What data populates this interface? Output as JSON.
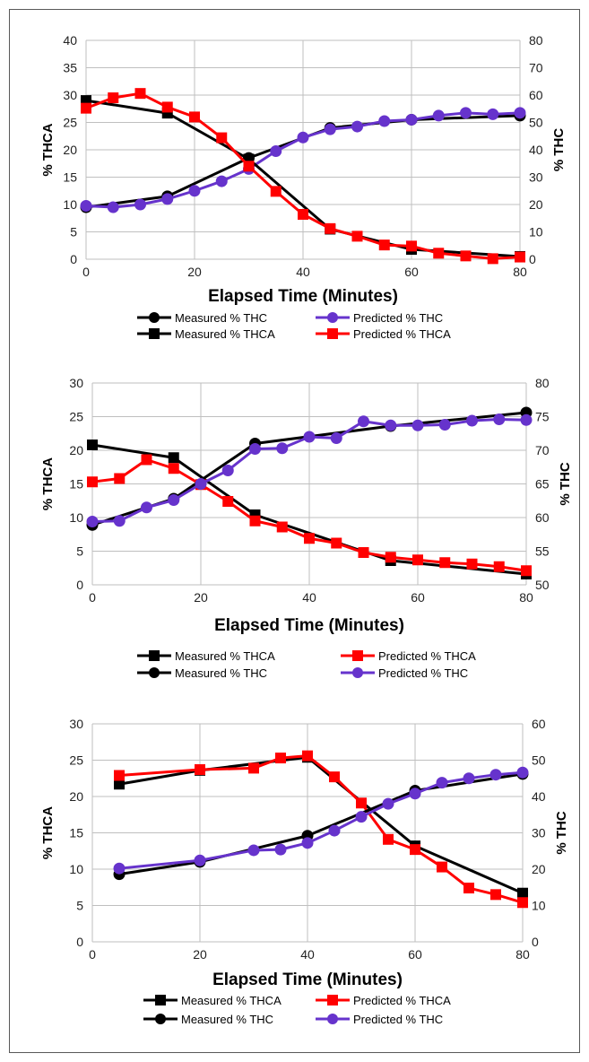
{
  "chart_data": [
    {
      "type": "line",
      "xlabel": "Elapsed Time (Minutes)",
      "ylabel": "% THCA",
      "y2label": "% THC",
      "xlim": [
        0,
        80
      ],
      "xticks": [
        0,
        20,
        40,
        60,
        80
      ],
      "ylim": [
        0,
        40
      ],
      "yticks": [
        0,
        5,
        10,
        15,
        20,
        25,
        30,
        35,
        40
      ],
      "y2lim": [
        0,
        80
      ],
      "y2ticks": [
        0,
        10,
        20,
        30,
        40,
        50,
        60,
        70,
        80
      ],
      "grid": true,
      "legend_position": "bottom",
      "legend_rows": [
        [
          "Measured % THC",
          "Predicted % THC"
        ],
        [
          "Measured % THCA",
          "Predicted % THCA"
        ]
      ],
      "series": [
        {
          "name": "Measured % THC",
          "axis": "right",
          "color": "#000000",
          "marker": "circle",
          "x": [
            0,
            15,
            30,
            45,
            60,
            80
          ],
          "y": [
            19,
            23,
            37,
            48,
            51,
            52.5
          ]
        },
        {
          "name": "Predicted % THC",
          "axis": "right",
          "color": "#6633CC",
          "marker": "circle",
          "x": [
            0,
            5,
            10,
            15,
            20,
            25,
            30,
            35,
            40,
            45,
            50,
            55,
            60,
            65,
            70,
            75,
            80
          ],
          "y": [
            19.5,
            19,
            20,
            22,
            25,
            28.5,
            33,
            39.5,
            44.5,
            47.5,
            48.5,
            50.5,
            51,
            52.5,
            53.5,
            53,
            53.5
          ]
        },
        {
          "name": "Measured % THCA",
          "axis": "left",
          "color": "#000000",
          "marker": "square",
          "x": [
            0,
            15,
            30,
            45,
            60,
            80
          ],
          "y": [
            29,
            26.7,
            18.3,
            5.5,
            1.8,
            0.5
          ]
        },
        {
          "name": "Predicted % THCA",
          "axis": "left",
          "color": "#FF0000",
          "marker": "square",
          "x": [
            0,
            5,
            10,
            15,
            20,
            25,
            30,
            35,
            40,
            45,
            50,
            55,
            60,
            65,
            70,
            75,
            80
          ],
          "y": [
            27.6,
            29.5,
            30.3,
            27.8,
            26,
            22.2,
            17,
            12.4,
            8.2,
            5.6,
            4.2,
            2.6,
            2.4,
            1.1,
            0.6,
            0.1,
            0.4
          ]
        }
      ]
    },
    {
      "type": "line",
      "xlabel": "Elapsed Time (Minutes)",
      "ylabel": "% THCA",
      "y2label": "% THC",
      "xlim": [
        0,
        80
      ],
      "xticks": [
        0,
        20,
        40,
        60,
        80
      ],
      "ylim": [
        0,
        30
      ],
      "yticks": [
        0,
        5,
        10,
        15,
        20,
        25,
        30
      ],
      "y2lim": [
        50,
        80
      ],
      "y2ticks": [
        50,
        55,
        60,
        65,
        70,
        75,
        80
      ],
      "grid": true,
      "legend_position": "bottom",
      "legend_rows": [
        [
          "Measured % THCA",
          "Predicted % THCA"
        ],
        [
          "Measured % THC",
          "Predicted % THC"
        ]
      ],
      "series": [
        {
          "name": "Measured % THCA",
          "axis": "left",
          "color": "#000000",
          "marker": "square",
          "x": [
            0,
            15,
            30,
            55,
            80
          ],
          "y": [
            20.8,
            18.9,
            10.4,
            3.6,
            1.6
          ]
        },
        {
          "name": "Predicted % THCA",
          "axis": "left",
          "color": "#FF0000",
          "marker": "square",
          "x": [
            0,
            5,
            10,
            15,
            20,
            25,
            30,
            35,
            40,
            45,
            50,
            55,
            60,
            65,
            70,
            75,
            80
          ],
          "y": [
            15.3,
            15.8,
            18.6,
            17.3,
            14.9,
            12.4,
            9.5,
            8.6,
            6.9,
            6.2,
            4.8,
            4.1,
            3.7,
            3.3,
            3.1,
            2.7,
            2.1
          ]
        },
        {
          "name": "Measured % THC",
          "axis": "right",
          "color": "#000000",
          "marker": "circle",
          "x": [
            0,
            15,
            30,
            55,
            80
          ],
          "y": [
            58.9,
            62.8,
            71,
            73.6,
            75.6
          ]
        },
        {
          "name": "Predicted % THC",
          "axis": "right",
          "color": "#6633CC",
          "marker": "circle",
          "x": [
            0,
            5,
            10,
            15,
            20,
            25,
            30,
            35,
            40,
            45,
            50,
            55,
            60,
            65,
            70,
            75,
            80
          ],
          "y": [
            59.4,
            59.5,
            61.5,
            62.6,
            65,
            67,
            70.2,
            70.3,
            72,
            71.8,
            74.3,
            73.7,
            73.7,
            73.8,
            74.4,
            74.6,
            74.5
          ]
        }
      ]
    },
    {
      "type": "line",
      "xlabel": "Elapsed Time (Minutes)",
      "ylabel": "% THCA",
      "y2label": "% THC",
      "xlim": [
        0,
        80
      ],
      "xticks": [
        0,
        20,
        40,
        60,
        80
      ],
      "ylim": [
        0,
        30
      ],
      "yticks": [
        0,
        5,
        10,
        15,
        20,
        25,
        30
      ],
      "y2lim": [
        0,
        60
      ],
      "y2ticks": [
        0,
        10,
        20,
        30,
        40,
        50,
        60
      ],
      "grid": true,
      "legend_position": "bottom",
      "legend_rows": [
        [
          "Measured % THCA",
          "Predicted % THCA"
        ],
        [
          "Measured % THC",
          "Predicted % THC"
        ]
      ],
      "series": [
        {
          "name": "Measured % THCA",
          "axis": "left",
          "color": "#000000",
          "marker": "square",
          "x": [
            5,
            20,
            40,
            60,
            80
          ],
          "y": [
            21.7,
            23.6,
            25.4,
            13.2,
            6.7
          ]
        },
        {
          "name": "Predicted % THCA",
          "axis": "left",
          "color": "#FF0000",
          "marker": "square",
          "x": [
            5,
            20,
            30,
            35,
            40,
            45,
            50,
            55,
            60,
            65,
            70,
            75,
            80
          ],
          "y": [
            22.9,
            23.7,
            23.9,
            25.3,
            25.6,
            22.7,
            19.1,
            14.1,
            12.7,
            10.3,
            7.4,
            6.5,
            5.4
          ]
        },
        {
          "name": "Measured % THC",
          "axis": "right",
          "color": "#000000",
          "marker": "circle",
          "x": [
            5,
            20,
            40,
            60,
            80
          ],
          "y": [
            18.6,
            22,
            29.2,
            41.6,
            46.2
          ]
        },
        {
          "name": "Predicted % THC",
          "axis": "right",
          "color": "#6633CC",
          "marker": "circle",
          "x": [
            5,
            20,
            30,
            35,
            40,
            45,
            50,
            55,
            60,
            65,
            70,
            75,
            80
          ],
          "y": [
            20.2,
            22.4,
            25.2,
            25.4,
            27.2,
            30.6,
            34.4,
            38,
            40.8,
            43.8,
            45,
            46,
            46.6
          ]
        }
      ]
    }
  ]
}
